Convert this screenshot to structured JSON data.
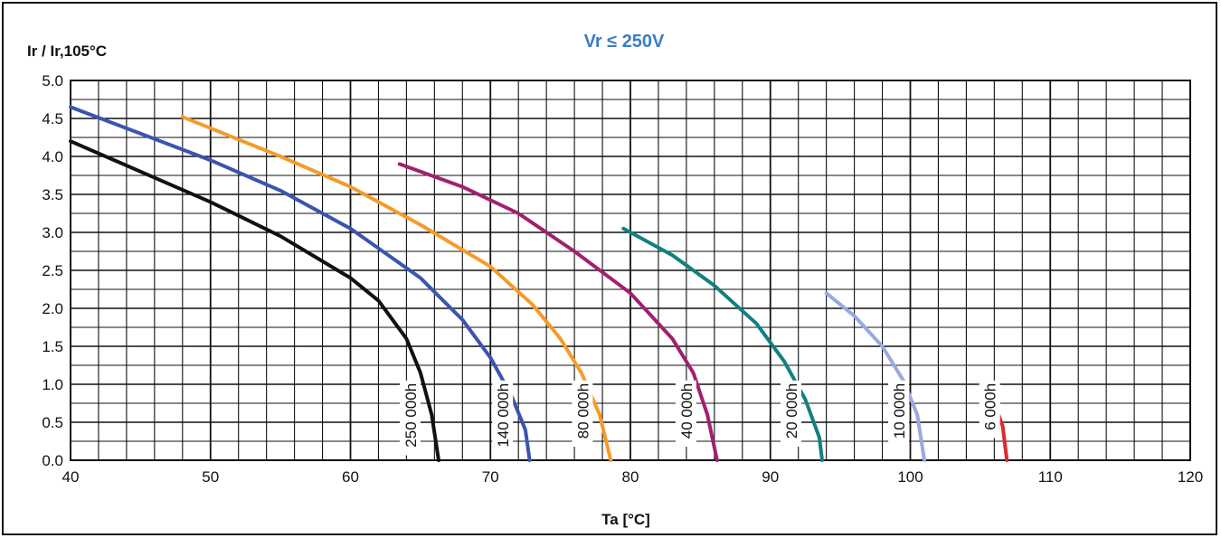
{
  "chart_data": {
    "type": "line",
    "title": "Vr ≤ 250V",
    "title_color": "#3a7cc7",
    "xlabel": "Ta [°C]",
    "ylabel": "Ir / Ir,105°C",
    "xlim": [
      40,
      120
    ],
    "ylim": [
      0,
      5
    ],
    "xticks": [
      "40",
      "50",
      "60",
      "70",
      "80",
      "90",
      "100",
      "110",
      "120"
    ],
    "yticks": [
      "0.0",
      "0.5",
      "1.0",
      "1.5",
      "2.0",
      "2.5",
      "3.0",
      "3.5",
      "4.0",
      "4.5",
      "5.0"
    ],
    "grid": true,
    "series": [
      {
        "name": "250 000h",
        "color": "#111111",
        "points": [
          [
            40,
            4.2
          ],
          [
            45,
            3.8
          ],
          [
            50,
            3.4
          ],
          [
            55,
            2.95
          ],
          [
            60,
            2.4
          ],
          [
            62,
            2.1
          ],
          [
            64,
            1.6
          ],
          [
            65,
            1.15
          ],
          [
            65.8,
            0.6
          ],
          [
            66.3,
            0
          ]
        ]
      },
      {
        "name": "140 000h",
        "color": "#3a55b0",
        "points": [
          [
            40,
            4.65
          ],
          [
            45,
            4.3
          ],
          [
            50,
            3.95
          ],
          [
            55,
            3.55
          ],
          [
            60,
            3.05
          ],
          [
            65,
            2.4
          ],
          [
            68,
            1.85
          ],
          [
            70,
            1.35
          ],
          [
            71.5,
            0.85
          ],
          [
            72.5,
            0.4
          ],
          [
            72.8,
            0
          ]
        ]
      },
      {
        "name": "80 000h",
        "color": "#f59b2b",
        "points": [
          [
            48,
            4.52
          ],
          [
            55,
            4.0
          ],
          [
            60,
            3.6
          ],
          [
            65,
            3.1
          ],
          [
            70,
            2.55
          ],
          [
            73,
            2.05
          ],
          [
            75,
            1.6
          ],
          [
            76.5,
            1.15
          ],
          [
            77.8,
            0.6
          ],
          [
            78.6,
            0
          ]
        ]
      },
      {
        "name": "40 000h",
        "color": "#a22070",
        "points": [
          [
            63.5,
            3.9
          ],
          [
            68,
            3.6
          ],
          [
            72,
            3.25
          ],
          [
            76,
            2.75
          ],
          [
            80,
            2.2
          ],
          [
            83,
            1.6
          ],
          [
            84.5,
            1.15
          ],
          [
            85.5,
            0.6
          ],
          [
            86.2,
            0
          ]
        ]
      },
      {
        "name": "20 000h",
        "color": "#118080",
        "points": [
          [
            79.5,
            3.05
          ],
          [
            83,
            2.7
          ],
          [
            86,
            2.3
          ],
          [
            89,
            1.8
          ],
          [
            91,
            1.3
          ],
          [
            92.5,
            0.8
          ],
          [
            93.5,
            0.3
          ],
          [
            93.7,
            0
          ]
        ]
      },
      {
        "name": "10 000h",
        "color": "#9aa8e0",
        "points": [
          [
            94,
            2.2
          ],
          [
            96,
            1.9
          ],
          [
            98,
            1.5
          ],
          [
            99.5,
            1.05
          ],
          [
            100.5,
            0.6
          ],
          [
            101,
            0
          ]
        ]
      },
      {
        "name": "6 000h",
        "color": "#e0282a",
        "points": [
          [
            105,
            1.0
          ],
          [
            106,
            0.75
          ],
          [
            106.6,
            0.45
          ],
          [
            106.9,
            0
          ]
        ]
      }
    ],
    "curve_labels": [
      {
        "text": "250 000h",
        "x": 64.3,
        "y": 1.05
      },
      {
        "text": "140 000h",
        "x": 70.9,
        "y": 1.05
      },
      {
        "text": "80 000h",
        "x": 76.6,
        "y": 1.05
      },
      {
        "text": "40 000h",
        "x": 84.0,
        "y": 1.05
      },
      {
        "text": "20 000h",
        "x": 91.5,
        "y": 1.05
      },
      {
        "text": "10 000h",
        "x": 99.2,
        "y": 1.05
      },
      {
        "text": "6 000h",
        "x": 105.7,
        "y": 1.05
      }
    ]
  }
}
